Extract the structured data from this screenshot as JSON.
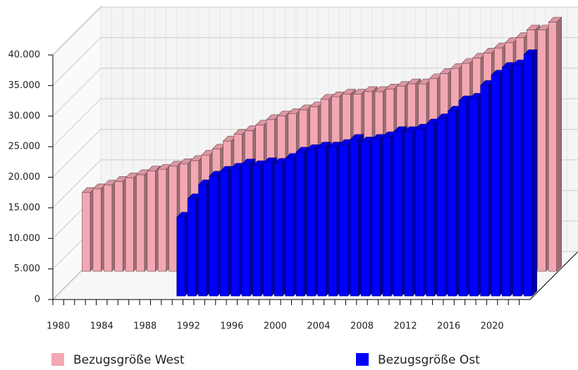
{
  "chart_data": {
    "type": "bar3d",
    "x": [
      1980,
      1981,
      1982,
      1983,
      1984,
      1985,
      1986,
      1987,
      1988,
      1989,
      1990,
      1991,
      1992,
      1993,
      1994,
      1995,
      1996,
      1997,
      1998,
      1999,
      2000,
      2001,
      2002,
      2003,
      2004,
      2005,
      2006,
      2007,
      2008,
      2009,
      2010,
      2011,
      2012,
      2013,
      2014,
      2015,
      2016,
      2017,
      2018,
      2019,
      2020,
      2021,
      2022,
      2023
    ],
    "xlim": [
      1980,
      2024
    ],
    "xticks": [
      1980,
      1984,
      1988,
      1992,
      1996,
      2000,
      2004,
      2008,
      2012,
      2016,
      2020
    ],
    "ylim": [
      0,
      40000
    ],
    "yticks": [
      0,
      {
        "value": 5000,
        "label": "5.000"
      },
      {
        "value": 10000,
        "label": "10.000"
      },
      {
        "value": 15000,
        "label": "15.000"
      },
      {
        "value": 20000,
        "label": "20.000"
      },
      {
        "value": 25000,
        "label": "25.000"
      },
      {
        "value": 30000,
        "label": "30.000"
      },
      {
        "value": 35000,
        "label": "35.000"
      },
      {
        "value": 40000,
        "label": "40.000"
      }
    ],
    "grid": true,
    "series": [
      {
        "name": "Bezugsgröße West",
        "color": "#f2a7b2",
        "values": [
          12900,
          13500,
          14100,
          14700,
          15300,
          15800,
          16400,
          16700,
          17200,
          17600,
          18100,
          19000,
          20000,
          21300,
          22400,
          23000,
          23900,
          24800,
          25400,
          25800,
          26400,
          26900,
          28140,
          28560,
          28980,
          28980,
          29400,
          29400,
          29820,
          30240,
          30660,
          30660,
          31500,
          32340,
          33180,
          34020,
          34860,
          35700,
          36540,
          37380,
          38220,
          39480,
          39480,
          40740
        ]
      },
      {
        "name": "Bezugsgröße Ost",
        "color": "#0000ff",
        "values": [
          null,
          null,
          null,
          null,
          null,
          null,
          null,
          null,
          null,
          null,
          null,
          12900,
          15900,
          18200,
          19600,
          20400,
          20900,
          21600,
          21300,
          21800,
          21700,
          22500,
          23520,
          23940,
          24360,
          24360,
          24780,
          25620,
          25200,
          25620,
          26040,
          26880,
          26880,
          27300,
          28140,
          28980,
          30240,
          31920,
          32340,
          34440,
          36120,
          37380,
          37800,
          39480
        ]
      }
    ]
  }
}
